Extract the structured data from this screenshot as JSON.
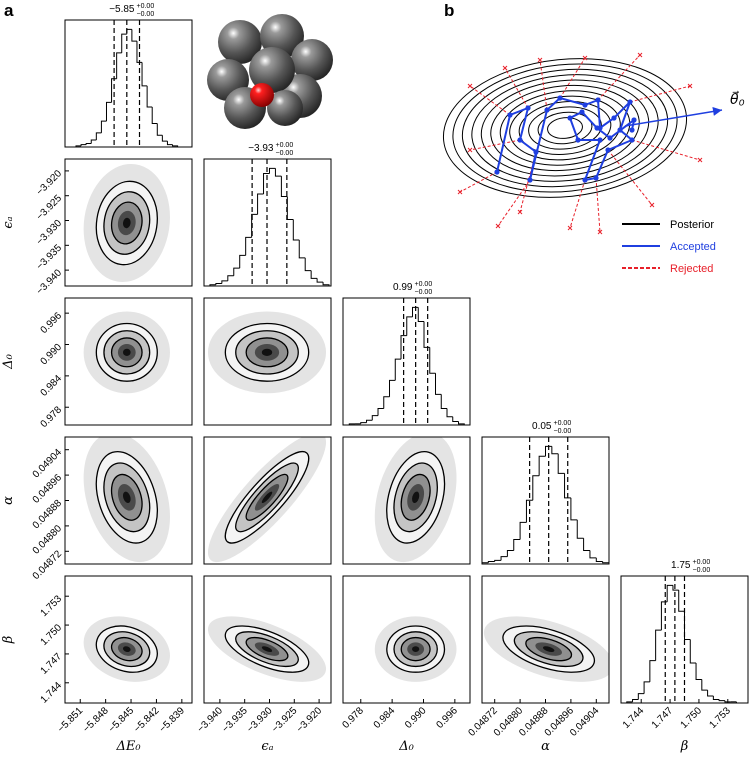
{
  "chart_data": {
    "type": "corner",
    "panel_label": "a",
    "parameters": [
      {
        "label": "ΔE₀",
        "title": "−5.85",
        "title_plus": "+0.00",
        "title_minus": "−0.00",
        "xlim": [
          -5.8528,
          -5.8378
        ],
        "xticks": [
          {
            "value": -5.851,
            "label": "−5.851"
          },
          {
            "value": -5.848,
            "label": "−5.848"
          },
          {
            "value": -5.845,
            "label": "−5.845"
          },
          {
            "value": -5.842,
            "label": "−5.842"
          },
          {
            "value": -5.839,
            "label": "−5.839"
          }
        ],
        "bins": [
          -5.8515,
          -5.8509,
          -5.8503,
          -5.8497,
          -5.8491,
          -5.8485,
          -5.8479,
          -5.8473,
          -5.8467,
          -5.8461,
          -5.8455,
          -5.8449,
          -5.8443,
          -5.8437,
          -5.8431,
          -5.8425,
          -5.8419,
          -5.8413,
          -5.8407,
          -5.8401,
          -5.8395
        ],
        "values": [
          1,
          2,
          3,
          6,
          12,
          22,
          38,
          58,
          80,
          96,
          100,
          90,
          72,
          52,
          34,
          20,
          10,
          5,
          2,
          1
        ],
        "quantiles": [
          -5.847,
          -5.8455,
          -5.844
        ]
      },
      {
        "label": "ϵₐ",
        "title": "−3.93",
        "title_plus": "+0.00",
        "title_minus": "−0.00",
        "xlim": [
          -3.9432,
          -3.9176
        ],
        "xticks": [
          {
            "value": -3.94,
            "label": "−3.940"
          },
          {
            "value": -3.935,
            "label": "−3.935"
          },
          {
            "value": -3.93,
            "label": "−3.930"
          },
          {
            "value": -3.925,
            "label": "−3.925"
          },
          {
            "value": -3.92,
            "label": "−3.920"
          }
        ],
        "bins": [
          -3.942,
          -3.9408,
          -3.9396,
          -3.9384,
          -3.9372,
          -3.936,
          -3.9348,
          -3.9336,
          -3.9324,
          -3.9312,
          -3.93,
          -3.9288,
          -3.9276,
          -3.9264,
          -3.9252,
          -3.924,
          -3.9228,
          -3.9216,
          -3.9204,
          -3.9192,
          -3.918
        ],
        "values": [
          1,
          2,
          4,
          8,
          14,
          24,
          38,
          56,
          72,
          88,
          92,
          86,
          70,
          52,
          36,
          22,
          12,
          6,
          3,
          1
        ],
        "quantiles": [
          -3.9335,
          -3.9305,
          -3.9265
        ]
      },
      {
        "label": "Δ₀",
        "title": "0.99",
        "title_plus": "+0.00",
        "title_minus": "−0.00",
        "xlim": [
          0.9746,
          0.9989
        ],
        "xticks": [
          0.978,
          0.984,
          {
            "value": 0.99,
            "label": "0.990"
          },
          0.996
        ],
        "bins": [
          0.9758,
          0.9769,
          0.978,
          0.9791,
          0.9802,
          0.9813,
          0.9824,
          0.9835,
          0.9846,
          0.9857,
          0.9868,
          0.9879,
          0.989,
          0.9901,
          0.9912,
          0.9923,
          0.9934,
          0.9945,
          0.9956,
          0.9967,
          0.9978
        ],
        "values": [
          1,
          1,
          2,
          4,
          8,
          14,
          24,
          38,
          56,
          76,
          92,
          100,
          88,
          66,
          44,
          26,
          14,
          7,
          3,
          1
        ],
        "quantiles": [
          0.9862,
          0.9885,
          0.9908
        ]
      },
      {
        "label": "α",
        "title": "0.05",
        "title_plus": "+0.00",
        "title_minus": "−0.00",
        "xlim": [
          0.04868,
          0.04908
        ],
        "xticks": [
          0.04872,
          {
            "value": 0.0488,
            "label": "0.04880"
          },
          0.04888,
          0.04896,
          0.04904
        ],
        "bins": [
          0.04868,
          0.0487,
          0.04872,
          0.04874,
          0.04876,
          0.04878,
          0.0488,
          0.04882,
          0.04884,
          0.04886,
          0.04888,
          0.0489,
          0.04892,
          0.04894,
          0.04896,
          0.04898,
          0.049,
          0.04902,
          0.04904,
          0.04906,
          0.04908
        ],
        "values": [
          1,
          2,
          3,
          6,
          11,
          20,
          34,
          52,
          72,
          88,
          96,
          90,
          74,
          54,
          36,
          21,
          11,
          5,
          2,
          1
        ],
        "quantiles": [
          0.04883,
          0.04889,
          0.04895
        ]
      },
      {
        "label": "β",
        "title": "1.75",
        "title_plus": "+0.00",
        "title_minus": "−0.00",
        "xlim": [
          1.7419,
          1.7551
        ],
        "xticks": [
          1.744,
          1.747,
          {
            "value": 1.75,
            "label": "1.750"
          },
          1.753
        ],
        "bins": [
          1.7425,
          1.7431,
          1.7437,
          1.7443,
          1.7449,
          1.7455,
          1.7461,
          1.7467,
          1.7473,
          1.7479,
          1.7485,
          1.7491,
          1.7497,
          1.7503,
          1.7509,
          1.7515,
          1.7521,
          1.7527,
          1.7533,
          1.7539,
          1.7545
        ],
        "values": [
          1,
          3,
          8,
          18,
          36,
          62,
          86,
          100,
          96,
          78,
          54,
          34,
          20,
          11,
          6,
          3,
          2,
          1,
          1,
          0
        ],
        "quantiles": [
          1.7465,
          1.7475,
          1.7485
        ]
      }
    ],
    "correlations": [
      0.1,
      0.0,
      0.0,
      -0.3,
      0.85,
      0.3,
      -0.2,
      -0.6,
      0.0,
      -0.5
    ],
    "color": "#000000"
  },
  "panel_b": {
    "label": "b",
    "theta_label": "θ⃗₀",
    "legend": [
      {
        "name": "Posterior",
        "color": "#000000",
        "style": "solid"
      },
      {
        "name": "Accepted",
        "color": "#1f3fe0",
        "style": "solid"
      },
      {
        "name": "Rejected",
        "color": "#e8202a",
        "style": "dashed"
      }
    ]
  }
}
